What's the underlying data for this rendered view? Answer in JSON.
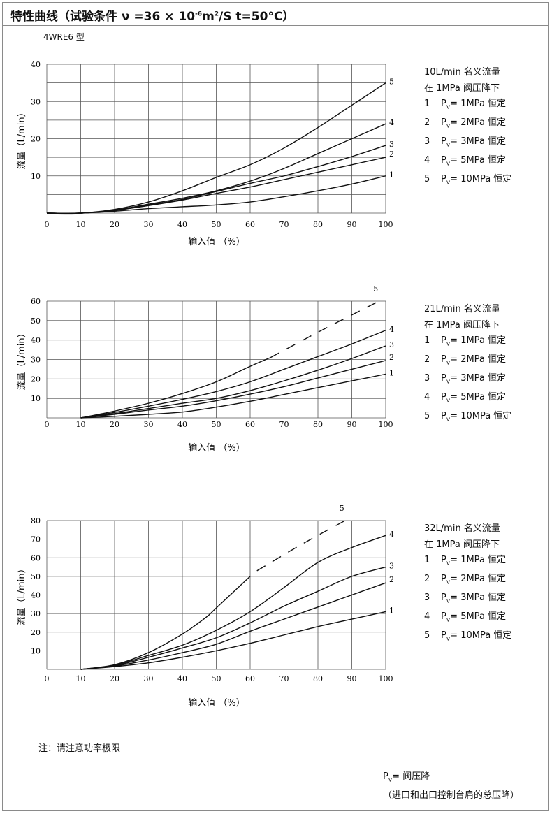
{
  "header": {
    "title_main": "特性曲线（试验条件 ν =36 × 10",
    "title_exp": "-6",
    "title_mid": "m",
    "title_exp2": "2",
    "title_end": "/S  t=50°C）",
    "model": "4WRE6 型"
  },
  "legend_common": {
    "line2": "在 1MPa 阀压降下",
    "items": [
      {
        "num": "1",
        "p": "P",
        "sub": "v",
        "text": "=  1MPa 恒定"
      },
      {
        "num": "2",
        "p": "P",
        "sub": "v",
        "text": "=  2MPa 恒定"
      },
      {
        "num": "3",
        "p": "P",
        "sub": "v",
        "text": "=  3MPa 恒定"
      },
      {
        "num": "4",
        "p": "P",
        "sub": "v",
        "text": "=  5MPa 恒定"
      },
      {
        "num": "5",
        "p": "P",
        "sub": "v",
        "text": "=  10MPa 恒定"
      }
    ]
  },
  "chart_data": [
    {
      "type": "line",
      "title": "10L/min 名义流量",
      "xlabel": "输入值 （%）",
      "ylabel": "流量（L/min）",
      "xlim": [
        0,
        100
      ],
      "ylim": [
        0,
        40
      ],
      "xticks": [
        "0",
        "10",
        "20",
        "30",
        "40",
        "50",
        "60",
        "70",
        "80",
        "90",
        "100"
      ],
      "yticks": [
        "10",
        "20",
        "30",
        "40"
      ],
      "grid": true,
      "series": [
        {
          "name": "1",
          "points": [
            [
              0,
              0
            ],
            [
              10,
              0
            ],
            [
              20,
              0.5
            ],
            [
              30,
              1.2
            ],
            [
              40,
              1.7
            ],
            [
              50,
              2.2
            ],
            [
              60,
              3
            ],
            [
              70,
              4.4
            ],
            [
              80,
              6
            ],
            [
              90,
              7.8
            ],
            [
              100,
              10
            ]
          ]
        },
        {
          "name": "2",
          "points": [
            [
              0,
              0
            ],
            [
              10,
              0
            ],
            [
              20,
              0.7
            ],
            [
              30,
              2
            ],
            [
              40,
              3.5
            ],
            [
              50,
              5.3
            ],
            [
              60,
              7
            ],
            [
              70,
              9
            ],
            [
              80,
              11
            ],
            [
              90,
              13
            ],
            [
              100,
              15
            ]
          ]
        },
        {
          "name": "3",
          "points": [
            [
              0,
              0
            ],
            [
              10,
              0
            ],
            [
              20,
              0.8
            ],
            [
              30,
              2.2
            ],
            [
              40,
              3.7
            ],
            [
              50,
              5.8
            ],
            [
              60,
              8
            ],
            [
              70,
              10
            ],
            [
              80,
              12.5
            ],
            [
              90,
              15.2
            ],
            [
              100,
              18.2
            ]
          ]
        },
        {
          "name": "4",
          "points": [
            [
              0,
              0
            ],
            [
              10,
              0
            ],
            [
              20,
              0.8
            ],
            [
              30,
              2.4
            ],
            [
              40,
              4
            ],
            [
              50,
              6
            ],
            [
              60,
              8.6
            ],
            [
              70,
              12
            ],
            [
              80,
              16
            ],
            [
              90,
              20
            ],
            [
              100,
              24
            ]
          ]
        },
        {
          "name": "5",
          "points": [
            [
              0,
              0
            ],
            [
              10,
              0
            ],
            [
              20,
              1
            ],
            [
              30,
              3
            ],
            [
              40,
              6
            ],
            [
              50,
              9.6
            ],
            [
              60,
              13
            ],
            [
              70,
              17.5
            ],
            [
              80,
              23
            ],
            [
              90,
              29
            ],
            [
              100,
              35
            ]
          ]
        }
      ]
    },
    {
      "type": "line",
      "title": "21L/min 名义流量",
      "xlabel": "输入值 （%）",
      "ylabel": "流量（L/min）",
      "xlim": [
        0,
        100
      ],
      "ylim": [
        0,
        60
      ],
      "xticks": [
        "0",
        "10",
        "20",
        "30",
        "40",
        "50",
        "60",
        "70",
        "80",
        "90",
        "100"
      ],
      "yticks": [
        "10",
        "20",
        "30",
        "40",
        "50",
        "60"
      ],
      "grid": true,
      "series": [
        {
          "name": "1",
          "points": [
            [
              10,
              0
            ],
            [
              20,
              0.8
            ],
            [
              30,
              1.8
            ],
            [
              40,
              3
            ],
            [
              50,
              5.5
            ],
            [
              60,
              8.5
            ],
            [
              70,
              12
            ],
            [
              80,
              15.5
            ],
            [
              90,
              19
            ],
            [
              100,
              22.5
            ]
          ]
        },
        {
          "name": "2",
          "points": [
            [
              10,
              0
            ],
            [
              20,
              1.8
            ],
            [
              30,
              4
            ],
            [
              40,
              6
            ],
            [
              50,
              8.8
            ],
            [
              60,
              12.2
            ],
            [
              70,
              16
            ],
            [
              80,
              20.5
            ],
            [
              90,
              25
            ],
            [
              100,
              29.5
            ]
          ]
        },
        {
          "name": "3",
          "points": [
            [
              10,
              0
            ],
            [
              20,
              2.2
            ],
            [
              30,
              4.8
            ],
            [
              40,
              7.5
            ],
            [
              50,
              10
            ],
            [
              60,
              14
            ],
            [
              70,
              19
            ],
            [
              80,
              24.5
            ],
            [
              90,
              30.5
            ],
            [
              100,
              37
            ]
          ]
        },
        {
          "name": "4",
          "points": [
            [
              10,
              0
            ],
            [
              20,
              2.8
            ],
            [
              30,
              6
            ],
            [
              40,
              9.5
            ],
            [
              50,
              13.5
            ],
            [
              60,
              18.5
            ],
            [
              70,
              25
            ],
            [
              80,
              31.5
            ],
            [
              90,
              38
            ],
            [
              100,
              45
            ]
          ]
        },
        {
          "name": "5",
          "points": [
            [
              10,
              0
            ],
            [
              20,
              3.5
            ],
            [
              30,
              7.5
            ],
            [
              40,
              12.5
            ],
            [
              50,
              18.5
            ],
            [
              60,
              26.5
            ],
            [
              66,
              31
            ]
          ],
          "dashed_points": [
            [
              66,
              31
            ],
            [
              80,
              44
            ],
            [
              98,
              60
            ]
          ]
        }
      ]
    },
    {
      "type": "line",
      "title": "32L/min 名义流量",
      "xlabel": "输入值 （%）",
      "ylabel": "流量（L/min）",
      "xlim": [
        0,
        100
      ],
      "ylim": [
        0,
        80
      ],
      "xticks": [
        "0",
        "10",
        "20",
        "30",
        "40",
        "50",
        "60",
        "70",
        "80",
        "90",
        "100"
      ],
      "yticks": [
        "10",
        "20",
        "30",
        "40",
        "50",
        "60",
        "70",
        "80"
      ],
      "grid": true,
      "series": [
        {
          "name": "1",
          "points": [
            [
              10,
              0
            ],
            [
              20,
              1.5
            ],
            [
              30,
              3.5
            ],
            [
              40,
              6.5
            ],
            [
              50,
              10
            ],
            [
              60,
              14
            ],
            [
              70,
              18.5
            ],
            [
              80,
              23
            ],
            [
              90,
              27
            ],
            [
              100,
              31
            ]
          ]
        },
        {
          "name": "2",
          "points": [
            [
              10,
              0
            ],
            [
              20,
              1.8
            ],
            [
              30,
              5
            ],
            [
              40,
              9
            ],
            [
              50,
              13.5
            ],
            [
              60,
              20.5
            ],
            [
              70,
              27
            ],
            [
              80,
              33.5
            ],
            [
              90,
              40
            ],
            [
              100,
              46.5
            ]
          ]
        },
        {
          "name": "3",
          "points": [
            [
              10,
              0
            ],
            [
              20,
              2
            ],
            [
              30,
              6.5
            ],
            [
              40,
              11.5
            ],
            [
              50,
              17
            ],
            [
              60,
              25
            ],
            [
              70,
              34
            ],
            [
              80,
              42
            ],
            [
              90,
              50
            ],
            [
              100,
              55
            ]
          ]
        },
        {
          "name": "4",
          "points": [
            [
              10,
              0
            ],
            [
              20,
              2.3
            ],
            [
              30,
              7.5
            ],
            [
              40,
              13
            ],
            [
              50,
              21
            ],
            [
              60,
              31
            ],
            [
              70,
              44
            ],
            [
              80,
              57.5
            ],
            [
              90,
              65.5
            ],
            [
              100,
              72
            ]
          ]
        },
        {
          "name": "5",
          "points": [
            [
              10,
              0
            ],
            [
              20,
              2.5
            ],
            [
              30,
              9
            ],
            [
              40,
              19
            ],
            [
              47,
              28
            ],
            [
              50,
              33
            ],
            [
              60,
              50
            ]
          ],
          "dashed_points": [
            [
              62,
              53
            ],
            [
              75,
              67
            ],
            [
              88,
              80
            ]
          ]
        }
      ]
    }
  ],
  "footer": {
    "note": "注：请注意功率极限",
    "pv_p": "P",
    "pv_sub": "v",
    "pv_text": "= 阀压降",
    "pv_detail": "（进口和出口控制台肩的总压降）"
  }
}
